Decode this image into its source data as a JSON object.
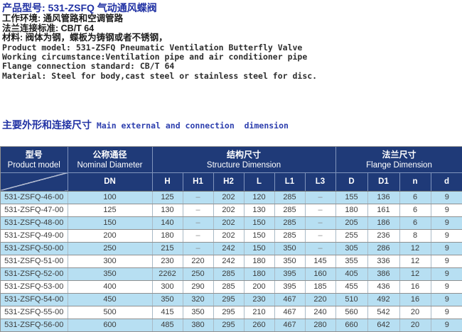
{
  "doc": {
    "product_title_cn": "产品型号: 531-ZSFQ 气动通风蝶阀",
    "info_cn": [
      "工作环境: 通风管路和空调管路",
      "法兰连接标准: CB/T 64",
      "材料: 阀体为钢，蝶板为铸钢或者不锈钢，"
    ],
    "info_en": [
      "Product model: 531-ZSFQ Pneumatic Ventilation Butterfly Valve",
      "Working circumstance:Ventilation pipe and air conditioner pipe",
      "Flange connection standard: CB/T 64",
      "Material: Steel for body,cast steel or stainless steel for disc."
    ]
  },
  "section": {
    "title_cn": "主要外形和连接尺寸",
    "title_en": " Main external and connection  dimension"
  },
  "table": {
    "colors": {
      "header_bg": "#1f3a78",
      "stripe_bg": "#b7dff2",
      "border_gray": "#909090",
      "header_line": "#8094bc",
      "title_blue": "#2132a4"
    },
    "group_headers": {
      "model": {
        "cn": "型号",
        "en": "Product model"
      },
      "nominal": {
        "cn": "公称通径",
        "en": "Nominal Diameter"
      },
      "structure": {
        "cn": "结构尺寸",
        "en": "Structure Dimension"
      },
      "flange": {
        "cn": "法兰尺寸",
        "en": "Flange Dimension"
      }
    },
    "sub_headers": [
      "DN",
      "H",
      "H1",
      "H2",
      "L",
      "L1",
      "L3",
      "D",
      "D1",
      "n",
      "d"
    ],
    "rows": [
      {
        "model": "531-ZSFQ-46-00",
        "values": [
          "100",
          "125",
          "–",
          "202",
          "120",
          "285",
          "–",
          "155",
          "136",
          "6",
          "9"
        ]
      },
      {
        "model": "531-ZSFQ-47-00",
        "values": [
          "125",
          "130",
          "–",
          "202",
          "130",
          "285",
          "–",
          "180",
          "161",
          "6",
          "9"
        ]
      },
      {
        "model": "531-ZSFQ-48-00",
        "values": [
          "150",
          "140",
          "–",
          "202",
          "150",
          "285",
          "–",
          "205",
          "186",
          "6",
          "9"
        ]
      },
      {
        "model": "531-ZSFQ-49-00",
        "values": [
          "200",
          "180",
          "–",
          "202",
          "150",
          "285",
          "–",
          "255",
          "236",
          "8",
          "9"
        ]
      },
      {
        "model": "531-ZSFQ-50-00",
        "values": [
          "250",
          "215",
          "–",
          "242",
          "150",
          "350",
          "–",
          "305",
          "286",
          "12",
          "9"
        ]
      },
      {
        "model": "531-ZSFQ-51-00",
        "values": [
          "300",
          "230",
          "220",
          "242",
          "180",
          "350",
          "145",
          "355",
          "336",
          "12",
          "9"
        ]
      },
      {
        "model": "531-ZSFQ-52-00",
        "values": [
          "350",
          "2262",
          "250",
          "285",
          "180",
          "395",
          "160",
          "405",
          "386",
          "12",
          "9"
        ]
      },
      {
        "model": "531-ZSFQ-53-00",
        "values": [
          "400",
          "300",
          "290",
          "285",
          "200",
          "395",
          "185",
          "455",
          "436",
          "16",
          "9"
        ]
      },
      {
        "model": "531-ZSFQ-54-00",
        "values": [
          "450",
          "350",
          "320",
          "295",
          "230",
          "467",
          "220",
          "510",
          "492",
          "16",
          "9"
        ]
      },
      {
        "model": "531-ZSFQ-55-00",
        "values": [
          "500",
          "415",
          "350",
          "295",
          "210",
          "467",
          "240",
          "560",
          "542",
          "20",
          "9"
        ]
      },
      {
        "model": "531-ZSFQ-56-00",
        "values": [
          "600",
          "485",
          "380",
          "295",
          "260",
          "467",
          "280",
          "660",
          "642",
          "20",
          "9"
        ]
      }
    ]
  }
}
